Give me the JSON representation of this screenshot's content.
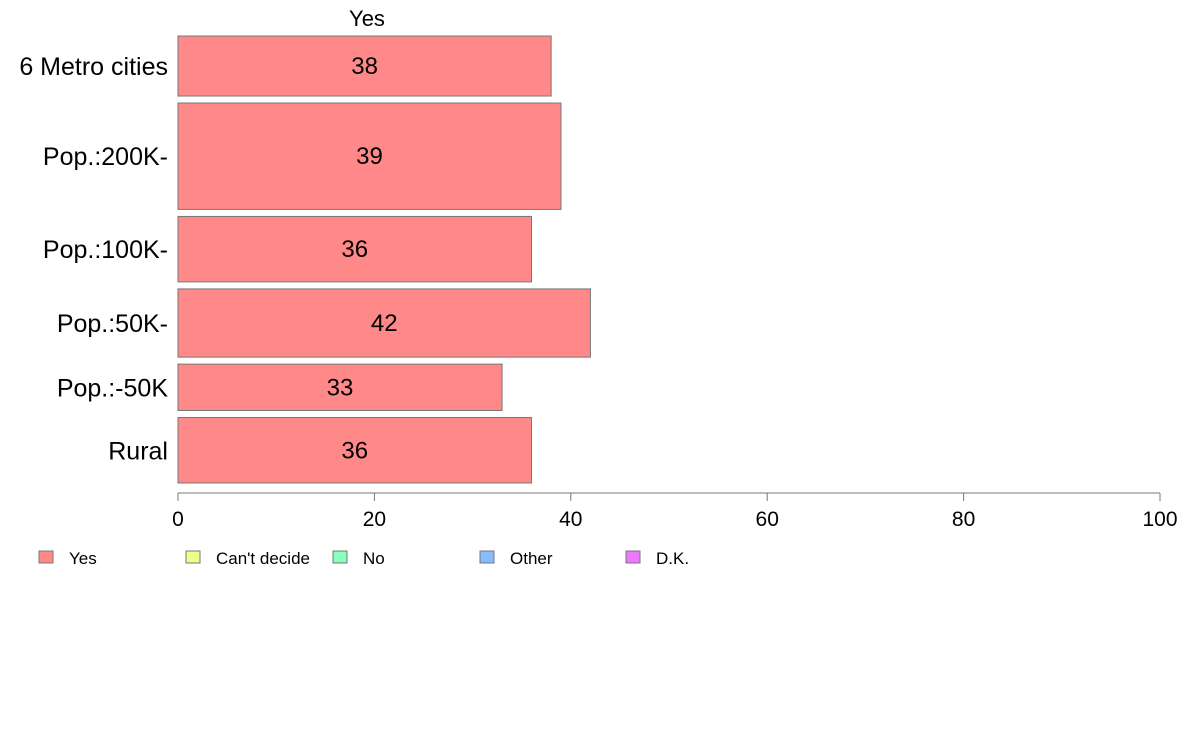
{
  "chart_data": {
    "type": "bar",
    "orientation": "horizontal",
    "stacked": true,
    "series_header": "Yes",
    "categories": [
      "6 Metro cities",
      "Pop.:200K-",
      "Pop.:100K-",
      "Pop.:50K-",
      "Pop.:-50K",
      "Rural"
    ],
    "category_weights": [
      1.1,
      1.95,
      1.2,
      1.25,
      0.85,
      1.2
    ],
    "series": [
      {
        "name": "Yes",
        "values": [
          38,
          39,
          36,
          42,
          33,
          36
        ],
        "color": "#ff8888"
      }
    ],
    "xlim": [
      0,
      100
    ],
    "xticks": [
      0,
      20,
      40,
      60,
      80,
      100
    ],
    "grid": false,
    "legend": {
      "placement": "bottom-left",
      "items": [
        {
          "label": "Yes",
          "color": "#ff8888"
        },
        {
          "label": "Can't decide",
          "color": "#eeff88"
        },
        {
          "label": "No",
          "color": "#88ffbb"
        },
        {
          "label": "Other",
          "color": "#88bbff"
        },
        {
          "label": "D.K.",
          "color": "#ee77ff"
        }
      ]
    }
  }
}
